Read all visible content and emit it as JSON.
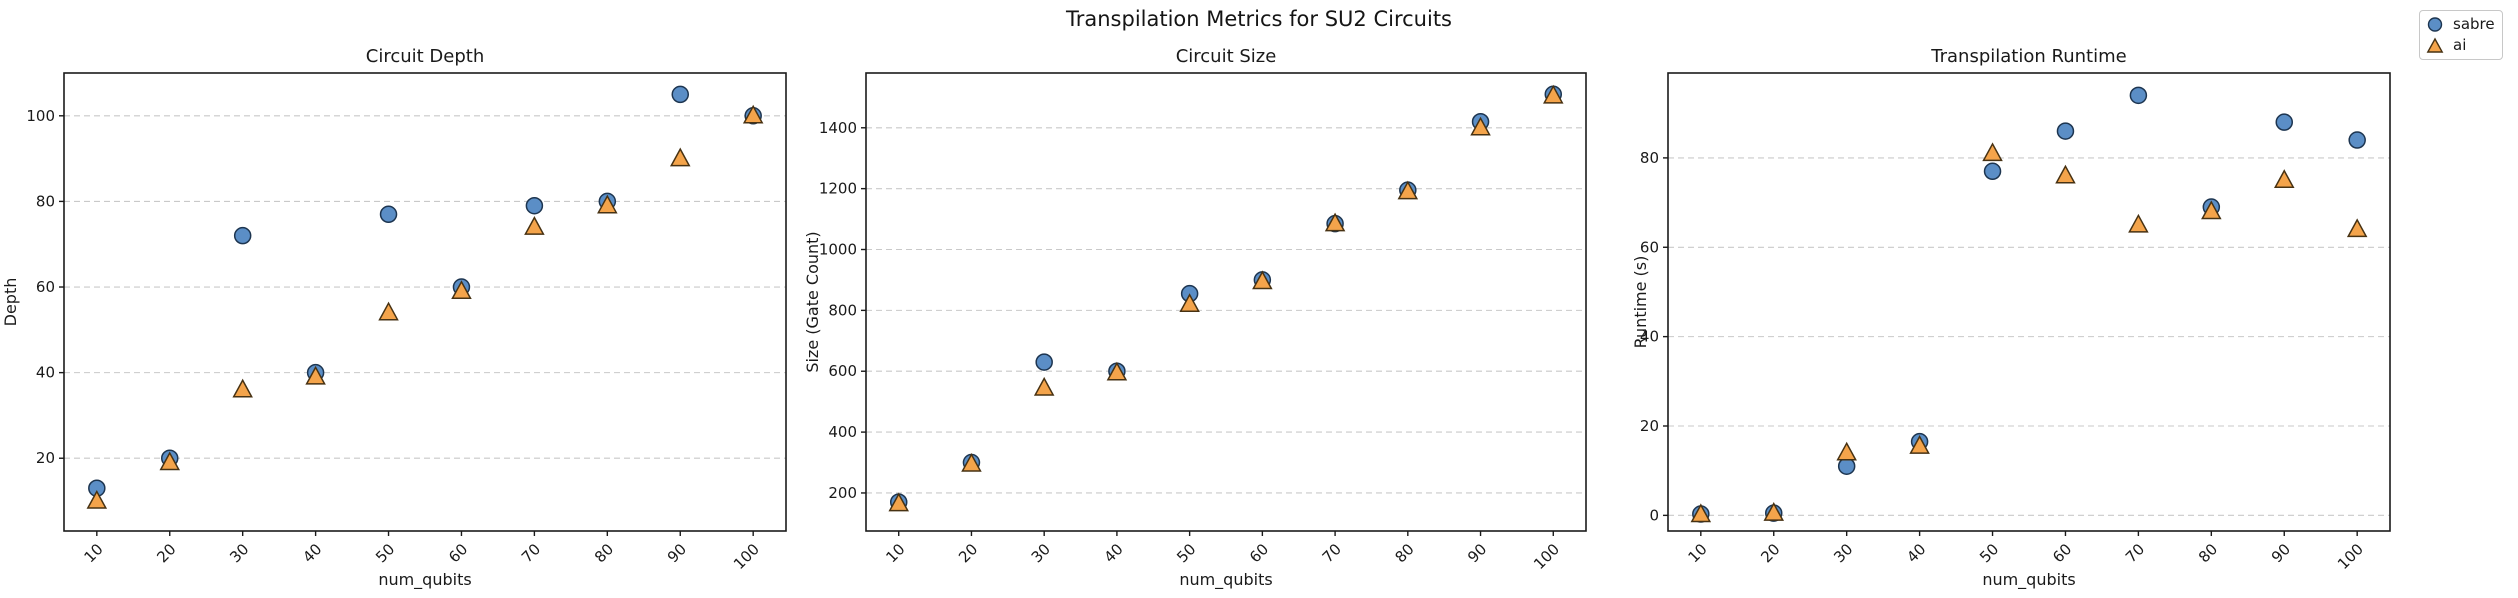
{
  "figure": {
    "title": "Transpilation Metrics for SU2 Circuits",
    "background": "#ffffff"
  },
  "legend": {
    "position": "top-right",
    "entries": [
      {
        "label": "sabre",
        "marker": "circle",
        "fill": "#5b8ec6",
        "edge": "#1d3550"
      },
      {
        "label": "ai",
        "marker": "triangle",
        "fill": "#f4a44b",
        "edge": "#473213"
      }
    ]
  },
  "style": {
    "grid_color": "#c9c9c9",
    "grid_style": "horizontal-dashed",
    "spine_color": "#1a1a1a",
    "axes_background": "#ffffff",
    "text_color": "#1a1a1a"
  },
  "chart_data": [
    {
      "type": "scatter",
      "title": "Circuit Depth",
      "xlabel": "num_qubits",
      "ylabel": "Depth",
      "x": [
        10,
        20,
        30,
        40,
        50,
        60,
        70,
        80,
        90,
        100
      ],
      "xticks": [
        10,
        20,
        30,
        40,
        50,
        60,
        70,
        80,
        90,
        100
      ],
      "yticks": [
        20,
        40,
        60,
        80,
        100
      ],
      "xlim": [
        5.5,
        104.5
      ],
      "ylim": [
        3,
        110
      ],
      "grid": "horizontal-dashed",
      "series": [
        {
          "name": "sabre",
          "marker": "circle",
          "values": [
            13,
            20,
            72,
            40,
            77,
            60,
            79,
            80,
            105,
            100
          ]
        },
        {
          "name": "ai",
          "marker": "triangle",
          "values": [
            10,
            19,
            36,
            39,
            54,
            59,
            74,
            79,
            90,
            100
          ]
        }
      ]
    },
    {
      "type": "scatter",
      "title": "Circuit Size",
      "xlabel": "num_qubits",
      "ylabel": "Size (Gate Count)",
      "x": [
        10,
        20,
        30,
        40,
        50,
        60,
        70,
        80,
        90,
        100
      ],
      "xticks": [
        10,
        20,
        30,
        40,
        50,
        60,
        70,
        80,
        90,
        100
      ],
      "yticks": [
        200,
        400,
        600,
        800,
        1000,
        1200,
        1400
      ],
      "xlim": [
        5.5,
        104.5
      ],
      "ylim": [
        75,
        1580
      ],
      "grid": "horizontal-dashed",
      "series": [
        {
          "name": "sabre",
          "marker": "circle",
          "values": [
            170,
            300,
            630,
            600,
            855,
            900,
            1085,
            1195,
            1420,
            1510
          ]
        },
        {
          "name": "ai",
          "marker": "triangle",
          "values": [
            165,
            295,
            545,
            595,
            820,
            895,
            1085,
            1190,
            1400,
            1505
          ]
        }
      ]
    },
    {
      "type": "scatter",
      "title": "Transpilation Runtime",
      "xlabel": "num_qubits",
      "ylabel": "Runtime (s)",
      "x": [
        10,
        20,
        30,
        40,
        50,
        60,
        70,
        80,
        90,
        100
      ],
      "xticks": [
        10,
        20,
        30,
        40,
        50,
        60,
        70,
        80,
        90,
        100
      ],
      "yticks": [
        0,
        20,
        40,
        60,
        80
      ],
      "xlim": [
        5.5,
        104.5
      ],
      "ylim": [
        -3.5,
        99
      ],
      "grid": "horizontal-dashed",
      "series": [
        {
          "name": "sabre",
          "marker": "circle",
          "values": [
            0.3,
            0.5,
            11,
            16.5,
            77,
            86,
            94,
            69,
            88,
            84
          ]
        },
        {
          "name": "ai",
          "marker": "triangle",
          "values": [
            0.2,
            0.5,
            14,
            15.5,
            81,
            76,
            65,
            68,
            75,
            64
          ]
        }
      ]
    }
  ]
}
